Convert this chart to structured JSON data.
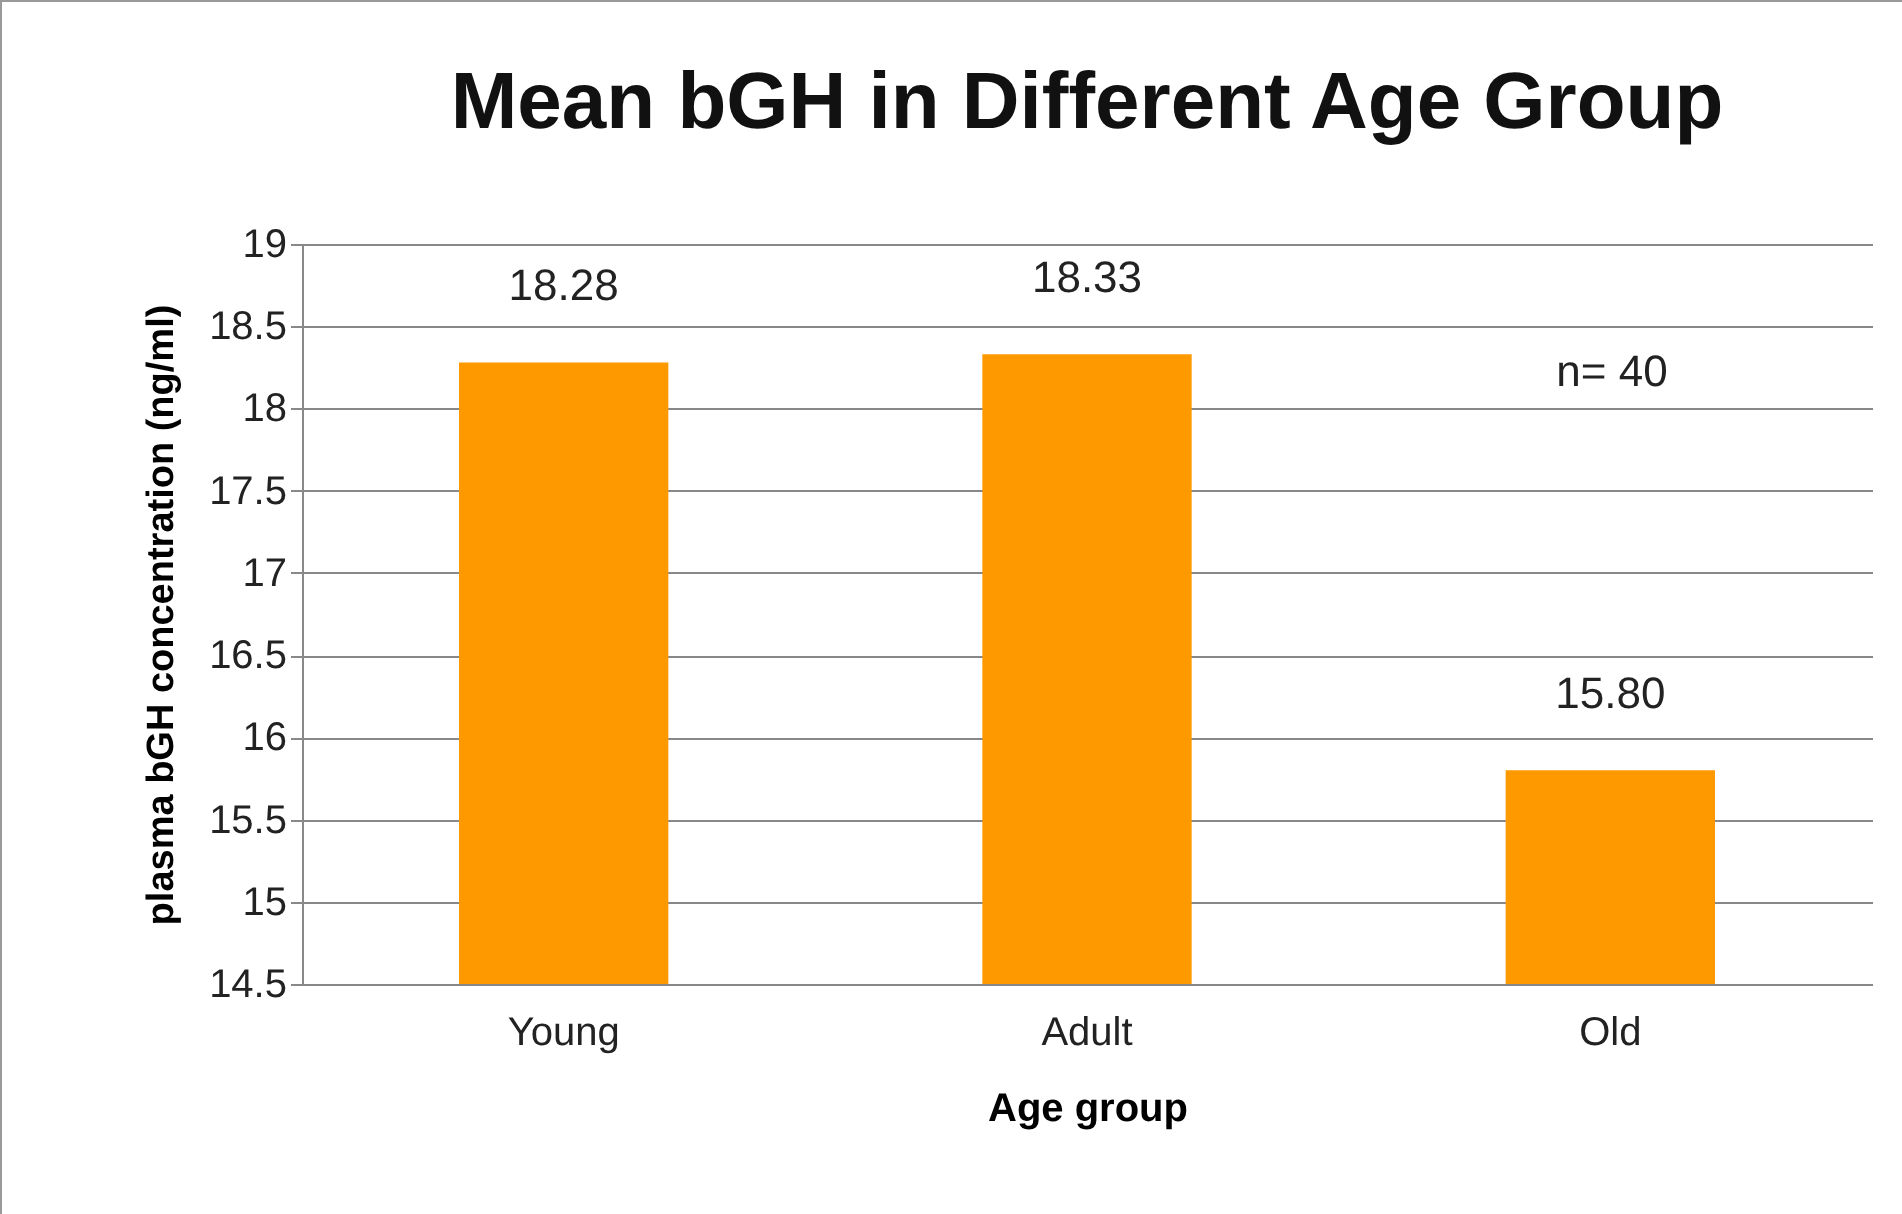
{
  "chart_data": {
    "type": "bar",
    "title": "Mean bGH in Different Age Group",
    "xlabel": "Age group",
    "ylabel": "plasma bGH concentration (ng/ml)",
    "categories": [
      "Young",
      "Adult",
      "Old"
    ],
    "values": [
      18.28,
      18.33,
      15.8
    ],
    "value_labels": [
      "18.28",
      "18.33",
      "15.80"
    ],
    "color": "#ff9900",
    "ylim": [
      14.5,
      19
    ],
    "yticks": [
      14.5,
      15,
      15.5,
      16,
      16.5,
      17,
      17.5,
      18,
      18.5,
      19
    ],
    "grid": "y",
    "annotations": [
      "n= 40"
    ]
  }
}
